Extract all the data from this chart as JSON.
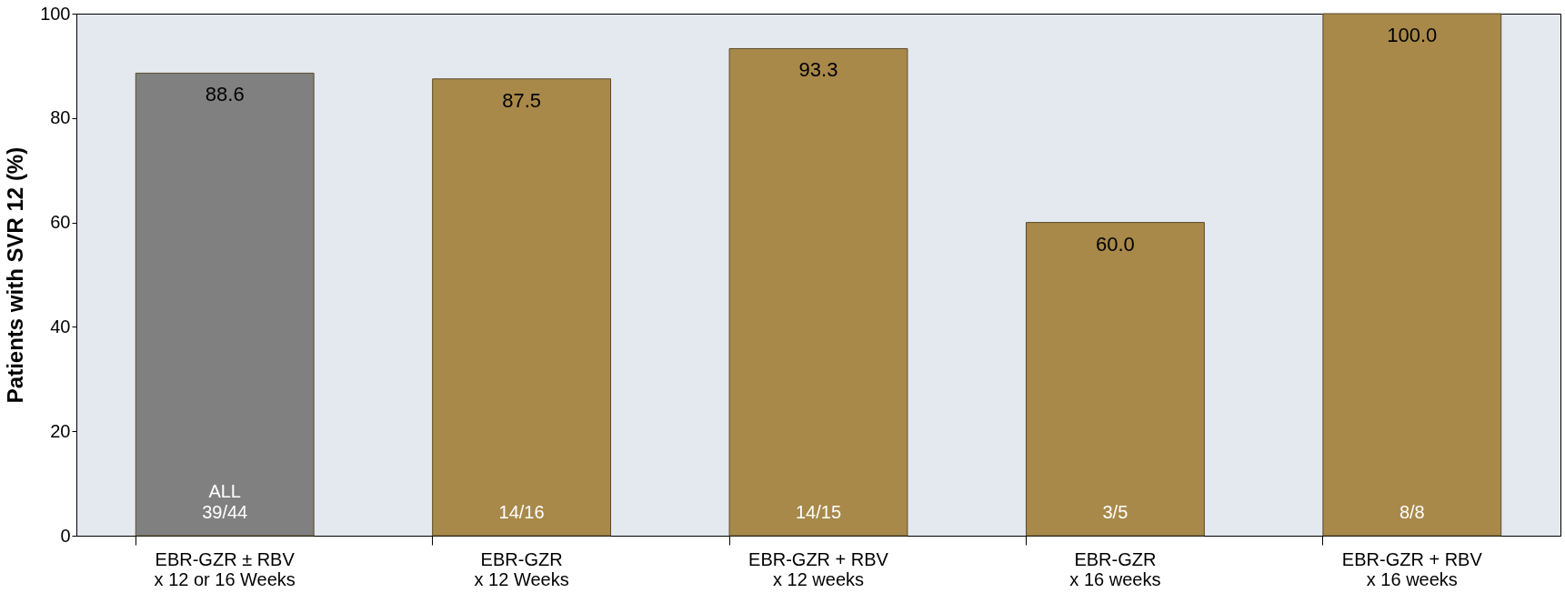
{
  "chart_data": {
    "type": "bar",
    "ylabel": "Patients with SVR 12 (%)",
    "categories": [
      "EBR-GZR ± RBV\nx 12 or 16 Weeks",
      "EBR-GZR\nx 12 Weeks",
      "EBR-GZR + RBV\nx 12 weeks",
      "EBR-GZR\nx 16 weeks",
      "EBR-GZR + RBV\nx 16 weeks"
    ],
    "values": [
      88.6,
      87.5,
      93.3,
      60.0,
      100.0
    ],
    "colors": [
      "#808080",
      "#a8894a",
      "#a8894a",
      "#a8894a",
      "#a8894a"
    ],
    "value_labels": [
      "88.6",
      "87.5",
      "93.3",
      "60.0",
      "100.0"
    ],
    "annotations": [
      "ALL\n39/44",
      "14/16",
      "14/15",
      "3/5",
      "8/8"
    ],
    "ylim": [
      0,
      100
    ],
    "yticks": [
      0,
      20,
      40,
      60,
      80,
      100
    ],
    "grid": false
  }
}
